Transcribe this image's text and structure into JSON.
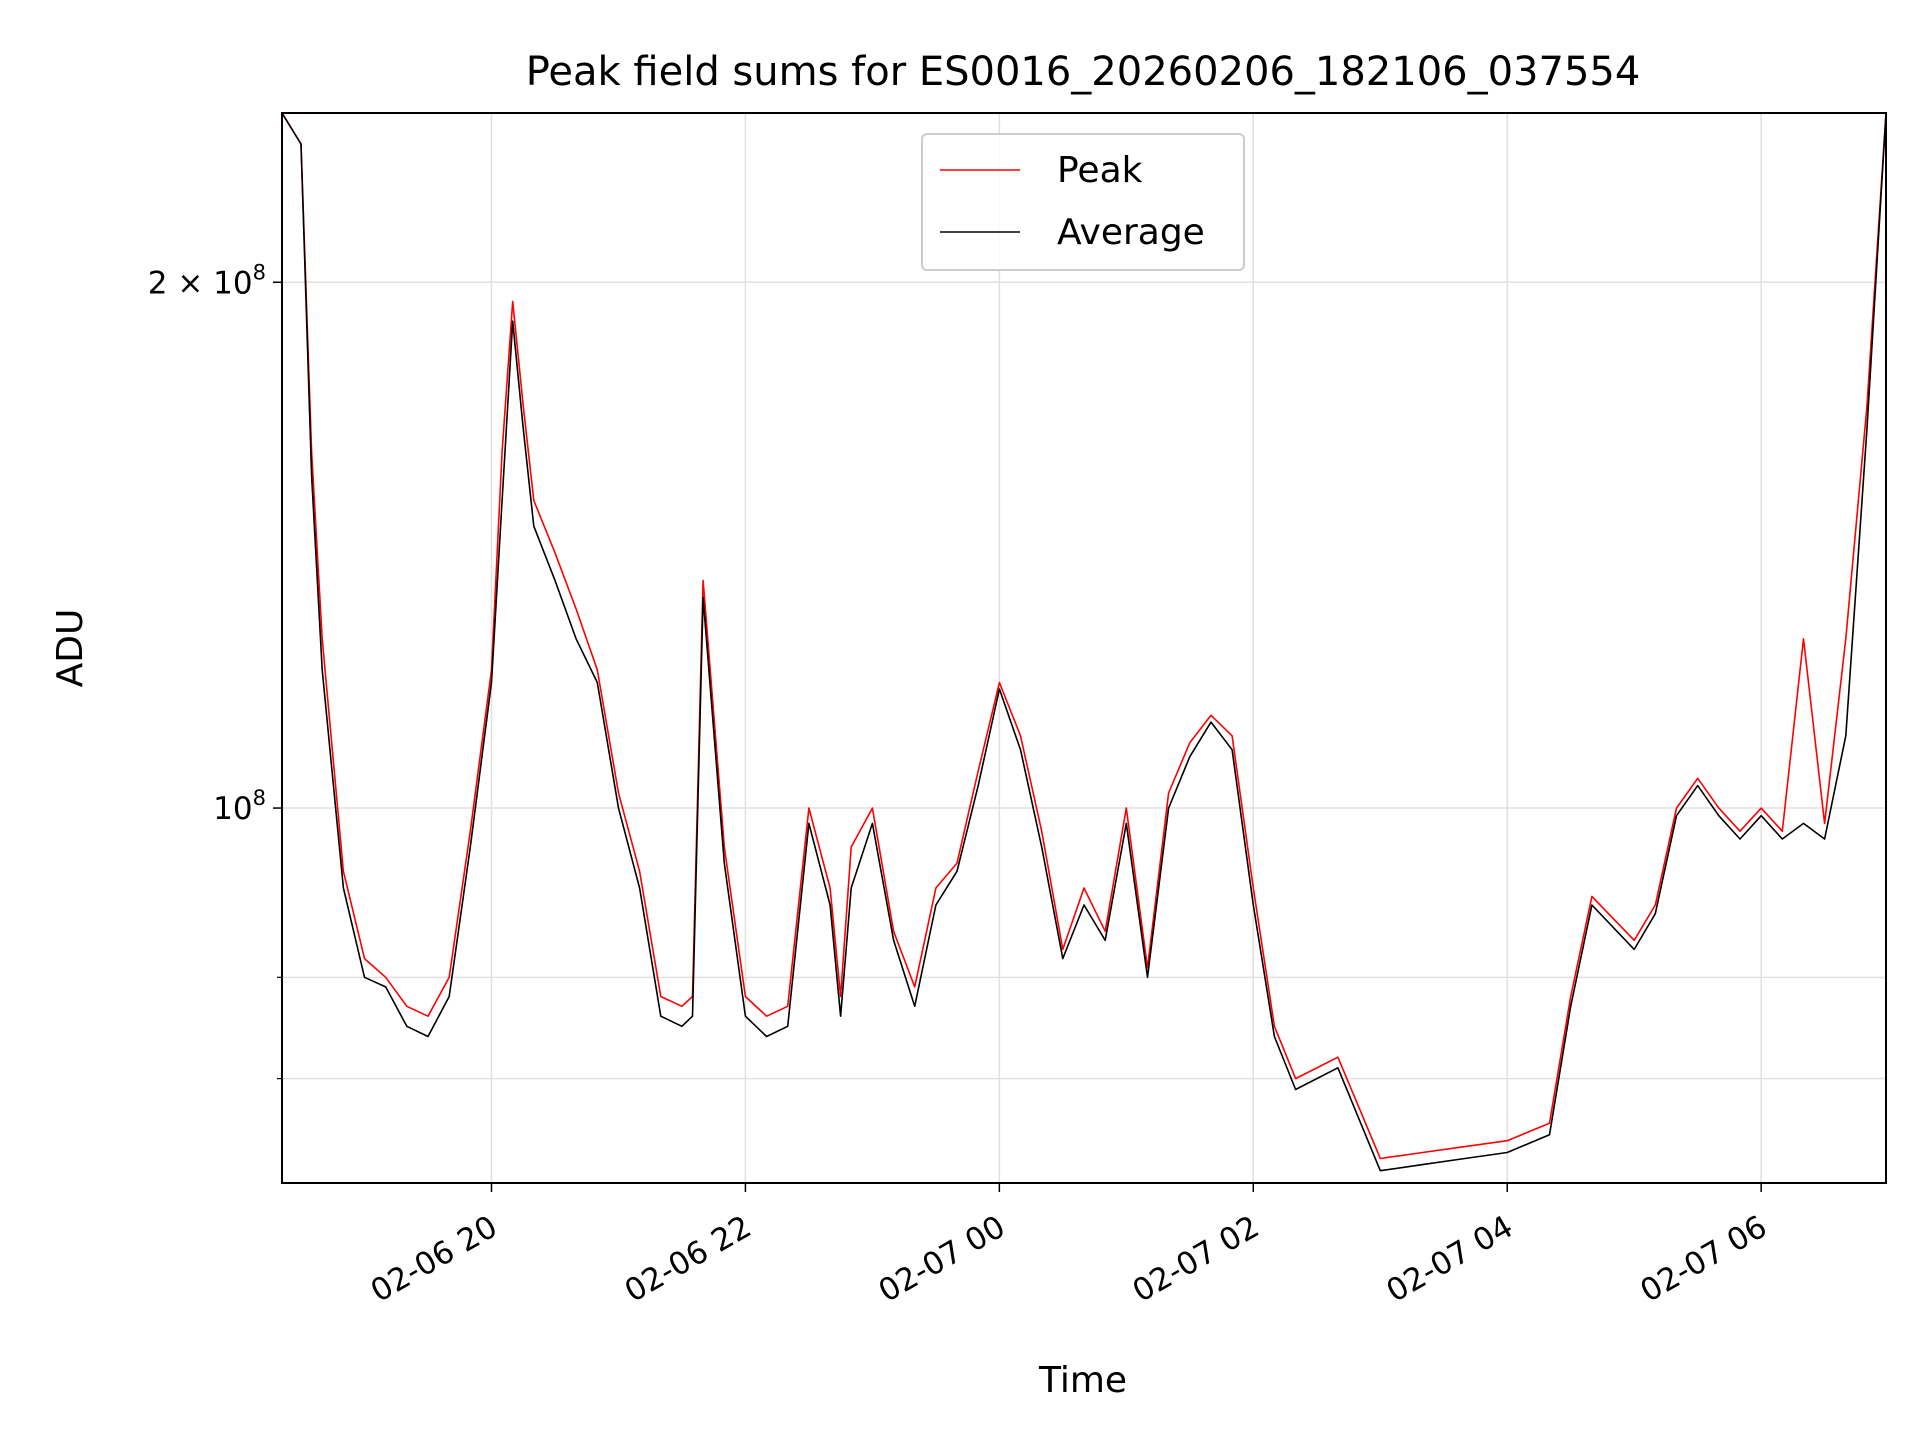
{
  "chart_data": {
    "type": "line",
    "title": "Peak field sums for ES0016_20260206_182106_037554",
    "xlabel": "Time",
    "ylabel": "ADU",
    "yscale": "log",
    "grid": true,
    "legend_position": "top-center",
    "xlim": [
      "2026-02-06 18:21",
      "2026-02-07 06:59"
    ],
    "ylim": [
      61000000,
      250000000
    ],
    "x_ticks": [
      "02-06 20",
      "02-06 22",
      "02-07 00",
      "02-07 02",
      "02-07 04",
      "02-07 06"
    ],
    "y_ticks": [
      {
        "value": 200000000,
        "label": "2 × 10^8",
        "base": "2 × 10",
        "exp": "8"
      },
      {
        "value": 100000000,
        "label": "10^8",
        "base": "10",
        "exp": "8"
      }
    ],
    "colors": {
      "Peak": "#ff0000",
      "Average": "#000000"
    },
    "series": [
      {
        "name": "Peak",
        "x": [
          "2026-02-06 18:21",
          "2026-02-06 18:30",
          "2026-02-06 18:35",
          "2026-02-06 18:40",
          "2026-02-06 18:50",
          "2026-02-06 19:00",
          "2026-02-06 19:10",
          "2026-02-06 19:20",
          "2026-02-06 19:30",
          "2026-02-06 19:40",
          "2026-02-06 19:50",
          "2026-02-06 20:00",
          "2026-02-06 20:05",
          "2026-02-06 20:10",
          "2026-02-06 20:15",
          "2026-02-06 20:20",
          "2026-02-06 20:30",
          "2026-02-06 20:40",
          "2026-02-06 20:50",
          "2026-02-06 21:00",
          "2026-02-06 21:10",
          "2026-02-06 21:20",
          "2026-02-06 21:30",
          "2026-02-06 21:35",
          "2026-02-06 21:40",
          "2026-02-06 21:50",
          "2026-02-06 22:00",
          "2026-02-06 22:10",
          "2026-02-06 22:20",
          "2026-02-06 22:30",
          "2026-02-06 22:40",
          "2026-02-06 22:45",
          "2026-02-06 22:50",
          "2026-02-06 23:00",
          "2026-02-06 23:10",
          "2026-02-06 23:20",
          "2026-02-06 23:30",
          "2026-02-06 23:40",
          "2026-02-06 23:50",
          "2026-02-07 00:00",
          "2026-02-07 00:10",
          "2026-02-07 00:20",
          "2026-02-07 00:30",
          "2026-02-07 00:40",
          "2026-02-07 00:50",
          "2026-02-07 01:00",
          "2026-02-07 01:10",
          "2026-02-07 01:20",
          "2026-02-07 01:30",
          "2026-02-07 01:40",
          "2026-02-07 01:50",
          "2026-02-07 02:00",
          "2026-02-07 02:10",
          "2026-02-07 02:20",
          "2026-02-07 02:40",
          "2026-02-07 03:00",
          "2026-02-07 03:20",
          "2026-02-07 03:40",
          "2026-02-07 04:00",
          "2026-02-07 04:20",
          "2026-02-07 04:30",
          "2026-02-07 04:40",
          "2026-02-07 05:00",
          "2026-02-07 05:10",
          "2026-02-07 05:20",
          "2026-02-07 05:30",
          "2026-02-07 05:40",
          "2026-02-07 05:50",
          "2026-02-07 06:00",
          "2026-02-07 06:10",
          "2026-02-07 06:20",
          "2026-02-07 06:30",
          "2026-02-07 06:40",
          "2026-02-07 06:50",
          "2026-02-07 06:59"
        ],
        "values": [
          250000000,
          240000000,
          160000000,
          125000000,
          92000000,
          82000000,
          80000000,
          77000000,
          76000000,
          80000000,
          97000000,
          120000000,
          160000000,
          195000000,
          170000000,
          150000000,
          140000000,
          130000000,
          120000000,
          102000000,
          92000000,
          78000000,
          77000000,
          78000000,
          135000000,
          95000000,
          78000000,
          76000000,
          77000000,
          100000000,
          90000000,
          78000000,
          95000000,
          100000000,
          85000000,
          79000000,
          90000000,
          93000000,
          105000000,
          118000000,
          110000000,
          97000000,
          83000000,
          90000000,
          85000000,
          100000000,
          81000000,
          102000000,
          109000000,
          113000000,
          110000000,
          90000000,
          75000000,
          70000000,
          72000000,
          63000000,
          63500000,
          64000000,
          64500000,
          66000000,
          78000000,
          89000000,
          84000000,
          88000000,
          100000000,
          104000000,
          100000000,
          97000000,
          100000000,
          97000000,
          125000000,
          98000000,
          125000000,
          170000000,
          250000000
        ]
      },
      {
        "name": "Average",
        "x": [
          "2026-02-06 18:21",
          "2026-02-06 18:30",
          "2026-02-06 18:35",
          "2026-02-06 18:40",
          "2026-02-06 18:50",
          "2026-02-06 19:00",
          "2026-02-06 19:10",
          "2026-02-06 19:20",
          "2026-02-06 19:30",
          "2026-02-06 19:40",
          "2026-02-06 19:50",
          "2026-02-06 20:00",
          "2026-02-06 20:05",
          "2026-02-06 20:10",
          "2026-02-06 20:15",
          "2026-02-06 20:20",
          "2026-02-06 20:30",
          "2026-02-06 20:40",
          "2026-02-06 20:50",
          "2026-02-06 21:00",
          "2026-02-06 21:10",
          "2026-02-06 21:20",
          "2026-02-06 21:30",
          "2026-02-06 21:35",
          "2026-02-06 21:40",
          "2026-02-06 21:50",
          "2026-02-06 22:00",
          "2026-02-06 22:10",
          "2026-02-06 22:20",
          "2026-02-06 22:30",
          "2026-02-06 22:40",
          "2026-02-06 22:45",
          "2026-02-06 22:50",
          "2026-02-06 23:00",
          "2026-02-06 23:10",
          "2026-02-06 23:20",
          "2026-02-06 23:30",
          "2026-02-06 23:40",
          "2026-02-06 23:50",
          "2026-02-07 00:00",
          "2026-02-07 00:10",
          "2026-02-07 00:20",
          "2026-02-07 00:30",
          "2026-02-07 00:40",
          "2026-02-07 00:50",
          "2026-02-07 01:00",
          "2026-02-07 01:10",
          "2026-02-07 01:20",
          "2026-02-07 01:30",
          "2026-02-07 01:40",
          "2026-02-07 01:50",
          "2026-02-07 02:00",
          "2026-02-07 02:10",
          "2026-02-07 02:20",
          "2026-02-07 02:40",
          "2026-02-07 03:00",
          "2026-02-07 03:20",
          "2026-02-07 03:40",
          "2026-02-07 04:00",
          "2026-02-07 04:20",
          "2026-02-07 04:30",
          "2026-02-07 04:40",
          "2026-02-07 05:00",
          "2026-02-07 05:10",
          "2026-02-07 05:20",
          "2026-02-07 05:30",
          "2026-02-07 05:40",
          "2026-02-07 05:50",
          "2026-02-07 06:00",
          "2026-02-07 06:10",
          "2026-02-07 06:20",
          "2026-02-07 06:30",
          "2026-02-07 06:40",
          "2026-02-07 06:50",
          "2026-02-07 06:59"
        ],
        "values": [
          250000000,
          240000000,
          155000000,
          120000000,
          90000000,
          80000000,
          79000000,
          75000000,
          74000000,
          78000000,
          95000000,
          118000000,
          150000000,
          190000000,
          165000000,
          145000000,
          135000000,
          125000000,
          118000000,
          100000000,
          90000000,
          76000000,
          75000000,
          76000000,
          132000000,
          93000000,
          76000000,
          74000000,
          75000000,
          98000000,
          88000000,
          76000000,
          90000000,
          98000000,
          84000000,
          77000000,
          88000000,
          92000000,
          103000000,
          117000000,
          108000000,
          95000000,
          82000000,
          88000000,
          84000000,
          98000000,
          80000000,
          100000000,
          107000000,
          112000000,
          108000000,
          88000000,
          74000000,
          69000000,
          71000000,
          62000000,
          62500000,
          63000000,
          63500000,
          65000000,
          77000000,
          88000000,
          83000000,
          87000000,
          99000000,
          103000000,
          99000000,
          96000000,
          99000000,
          96000000,
          98000000,
          96000000,
          110000000,
          165000000,
          250000000
        ]
      }
    ]
  }
}
